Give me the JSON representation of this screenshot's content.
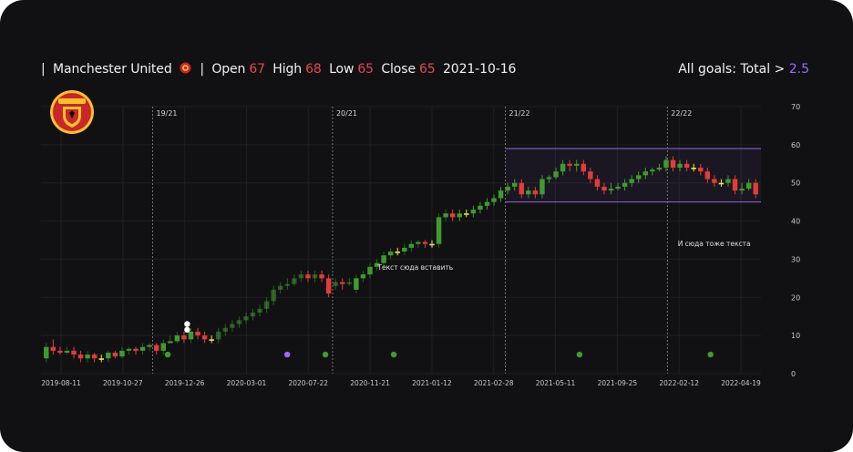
{
  "header": {
    "sep1": "|",
    "team": "Manchester United",
    "sep2": "|",
    "open_label": "Open",
    "open": "67",
    "high_label": "High",
    "high": "68",
    "low_label": "Low",
    "low": "65",
    "close_label": "Close",
    "close": "65",
    "date": "2021-10-16",
    "goals_label": "All goals: Total >",
    "goals_value": "2.5"
  },
  "logo": {
    "text": "MANCHESTER UNITED"
  },
  "colors": {
    "up": "#3f9b2f",
    "down": "#e23b3b",
    "doji": "#f2e64a",
    "band": "#8d6ad8",
    "bg": "#111113",
    "grid": "#1f1f23",
    "purple_value": "#9b6bff"
  },
  "chart_data": {
    "type": "candlestick",
    "ylim": [
      0,
      70
    ],
    "yticks": [
      0,
      10,
      20,
      30,
      40,
      50,
      60,
      70
    ],
    "xticks": [
      "2019-08-11",
      "2019-10-27",
      "2019-12-26",
      "2020-03-01",
      "2020-07-22",
      "2020-11-21",
      "2021-01-12",
      "2021-02-28",
      "2021-05-11",
      "2021-09-25",
      "2022-02-12",
      "2022-04-19"
    ],
    "seasons": [
      {
        "label": "19/21",
        "at": 0.155
      },
      {
        "label": "20/21",
        "at": 0.405
      },
      {
        "label": "21/22",
        "at": 0.645
      },
      {
        "label": "22/22",
        "at": 0.87
      }
    ],
    "band": {
      "top": 59,
      "bottom": 45,
      "from": 0.645,
      "to": 1.0
    },
    "annotations": [
      {
        "text": "Текст сюда вставить",
        "x": 0.52,
        "y": 27.2
      },
      {
        "text": "И сюда тоже текста",
        "x": 0.935,
        "y": 33.5
      }
    ],
    "candles": [
      {
        "o": 4,
        "c": 7,
        "h": 8,
        "l": 3
      },
      {
        "o": 7,
        "c": 6,
        "h": 9,
        "l": 5
      },
      {
        "o": 6,
        "c": 5.5,
        "h": 7,
        "l": 5
      },
      {
        "o": 5.5,
        "c": 6,
        "h": 7,
        "l": 5
      },
      {
        "o": 6,
        "c": 5,
        "h": 7,
        "l": 4
      },
      {
        "o": 5,
        "c": 4,
        "h": 6,
        "l": 3
      },
      {
        "o": 4,
        "c": 5,
        "h": 6,
        "l": 3
      },
      {
        "o": 5,
        "c": 4,
        "h": 5.5,
        "l": 3
      },
      {
        "o": 4,
        "c": 4,
        "h": 5,
        "l": 3
      },
      {
        "o": 4,
        "c": 5.5,
        "h": 6,
        "l": 3
      },
      {
        "o": 5.5,
        "c": 4.5,
        "h": 6,
        "l": 4
      },
      {
        "o": 4.5,
        "c": 6,
        "h": 7,
        "l": 4
      },
      {
        "o": 6,
        "c": 6.5,
        "h": 7,
        "l": 5
      },
      {
        "o": 6.5,
        "c": 6,
        "h": 7,
        "l": 5
      },
      {
        "o": 6,
        "c": 7,
        "h": 8,
        "l": 5
      },
      {
        "o": 7,
        "c": 7.5,
        "h": 8,
        "l": 6
      },
      {
        "o": 7.5,
        "c": 6,
        "h": 8,
        "l": 5
      },
      {
        "o": 6,
        "c": 8,
        "h": 9,
        "l": 5
      },
      {
        "o": 8,
        "c": 8.5,
        "h": 10,
        "l": 8
      },
      {
        "o": 8.5,
        "c": 10,
        "h": 11,
        "l": 8
      },
      {
        "o": 10,
        "c": 9,
        "h": 11,
        "l": 8
      },
      {
        "o": 9,
        "c": 11,
        "h": 12,
        "l": 8
      },
      {
        "o": 11,
        "c": 10,
        "h": 12,
        "l": 9
      },
      {
        "o": 10,
        "c": 9,
        "h": 11,
        "l": 8
      },
      {
        "o": 9,
        "c": 9,
        "h": 10,
        "l": 8
      },
      {
        "o": 9,
        "c": 11,
        "h": 12,
        "l": 8
      },
      {
        "o": 11,
        "c": 12,
        "h": 13,
        "l": 10
      },
      {
        "o": 12,
        "c": 13,
        "h": 14,
        "l": 11
      },
      {
        "o": 13,
        "c": 14,
        "h": 15,
        "l": 12
      },
      {
        "o": 14,
        "c": 15,
        "h": 16,
        "l": 13
      },
      {
        "o": 15,
        "c": 16,
        "h": 17,
        "l": 14
      },
      {
        "o": 16,
        "c": 17,
        "h": 18,
        "l": 15
      },
      {
        "o": 17,
        "c": 19,
        "h": 20,
        "l": 16
      },
      {
        "o": 19,
        "c": 22,
        "h": 23,
        "l": 18
      },
      {
        "o": 22,
        "c": 23,
        "h": 24,
        "l": 21
      },
      {
        "o": 23,
        "c": 23.5,
        "h": 25,
        "l": 22
      },
      {
        "o": 23.5,
        "c": 25,
        "h": 26,
        "l": 23
      },
      {
        "o": 25,
        "c": 26,
        "h": 27,
        "l": 24
      },
      {
        "o": 26,
        "c": 25,
        "h": 27,
        "l": 24
      },
      {
        "o": 25,
        "c": 26,
        "h": 27,
        "l": 24
      },
      {
        "o": 26,
        "c": 25,
        "h": 27,
        "l": 24
      },
      {
        "o": 25,
        "c": 21,
        "h": 26,
        "l": 20
      },
      {
        "o": 23,
        "c": 24,
        "h": 25,
        "l": 22
      },
      {
        "o": 24,
        "c": 23.5,
        "h": 25,
        "l": 22
      },
      {
        "o": 23.5,
        "c": 24,
        "h": 25,
        "l": 23
      },
      {
        "o": 22,
        "c": 25,
        "h": 26,
        "l": 21
      },
      {
        "o": 25,
        "c": 26,
        "h": 27,
        "l": 24
      },
      {
        "o": 26,
        "c": 28,
        "h": 29,
        "l": 25
      },
      {
        "o": 28,
        "c": 29,
        "h": 30,
        "l": 27
      },
      {
        "o": 29,
        "c": 31,
        "h": 32,
        "l": 28
      },
      {
        "o": 31,
        "c": 32,
        "h": 33,
        "l": 30
      },
      {
        "o": 32,
        "c": 32,
        "h": 33,
        "l": 31
      },
      {
        "o": 32,
        "c": 33,
        "h": 34,
        "l": 31
      },
      {
        "o": 33,
        "c": 34,
        "h": 35,
        "l": 32
      },
      {
        "o": 34,
        "c": 34.5,
        "h": 35,
        "l": 33
      },
      {
        "o": 34.5,
        "c": 34,
        "h": 35,
        "l": 33
      },
      {
        "o": 34,
        "c": 34,
        "h": 35,
        "l": 33
      },
      {
        "o": 34,
        "c": 41,
        "h": 42,
        "l": 33
      },
      {
        "o": 41,
        "c": 42,
        "h": 43,
        "l": 40
      },
      {
        "o": 42,
        "c": 41,
        "h": 43,
        "l": 40
      },
      {
        "o": 41,
        "c": 42,
        "h": 43,
        "l": 40
      },
      {
        "o": 42,
        "c": 42,
        "h": 43,
        "l": 41
      },
      {
        "o": 42,
        "c": 43,
        "h": 44,
        "l": 41
      },
      {
        "o": 43,
        "c": 44,
        "h": 45,
        "l": 42
      },
      {
        "o": 44,
        "c": 45,
        "h": 46,
        "l": 43
      },
      {
        "o": 45,
        "c": 46,
        "h": 47,
        "l": 44
      },
      {
        "o": 46,
        "c": 48,
        "h": 49,
        "l": 45
      },
      {
        "o": 48,
        "c": 49,
        "h": 50,
        "l": 47
      },
      {
        "o": 49,
        "c": 50,
        "h": 51,
        "l": 48
      },
      {
        "o": 50,
        "c": 47,
        "h": 51,
        "l": 46
      },
      {
        "o": 47,
        "c": 48,
        "h": 49,
        "l": 46
      },
      {
        "o": 48,
        "c": 47,
        "h": 49,
        "l": 46
      },
      {
        "o": 47,
        "c": 51,
        "h": 52,
        "l": 46
      },
      {
        "o": 51,
        "c": 51.5,
        "h": 52,
        "l": 50
      },
      {
        "o": 51.5,
        "c": 53,
        "h": 54,
        "l": 51
      },
      {
        "o": 53,
        "c": 55,
        "h": 56,
        "l": 52
      },
      {
        "o": 55,
        "c": 54.5,
        "h": 56,
        "l": 53
      },
      {
        "o": 54.5,
        "c": 55,
        "h": 56,
        "l": 53
      },
      {
        "o": 55,
        "c": 53,
        "h": 56,
        "l": 52
      },
      {
        "o": 53,
        "c": 51,
        "h": 54,
        "l": 50
      },
      {
        "o": 51,
        "c": 49,
        "h": 52,
        "l": 48
      },
      {
        "o": 49,
        "c": 48,
        "h": 50,
        "l": 47
      },
      {
        "o": 48,
        "c": 48.5,
        "h": 50,
        "l": 47
      },
      {
        "o": 48.5,
        "c": 49,
        "h": 50,
        "l": 48
      },
      {
        "o": 49,
        "c": 50,
        "h": 51,
        "l": 48
      },
      {
        "o": 50,
        "c": 51,
        "h": 52,
        "l": 49
      },
      {
        "o": 51,
        "c": 52,
        "h": 53,
        "l": 50
      },
      {
        "o": 52,
        "c": 53,
        "h": 54,
        "l": 51
      },
      {
        "o": 53,
        "c": 53.5,
        "h": 54,
        "l": 52
      },
      {
        "o": 53.5,
        "c": 54,
        "h": 55,
        "l": 53
      },
      {
        "o": 54,
        "c": 56,
        "h": 57,
        "l": 53
      },
      {
        "o": 56,
        "c": 54,
        "h": 57,
        "l": 53
      },
      {
        "o": 54,
        "c": 55,
        "h": 56,
        "l": 53
      },
      {
        "o": 55,
        "c": 54,
        "h": 56,
        "l": 53
      },
      {
        "o": 54,
        "c": 54,
        "h": 55,
        "l": 53
      },
      {
        "o": 54,
        "c": 53,
        "h": 55,
        "l": 52
      },
      {
        "o": 53,
        "c": 51,
        "h": 54,
        "l": 50
      },
      {
        "o": 51,
        "c": 50,
        "h": 52,
        "l": 49
      },
      {
        "o": 50,
        "c": 50,
        "h": 51,
        "l": 49
      },
      {
        "o": 50,
        "c": 51,
        "h": 52,
        "l": 49
      },
      {
        "o": 51,
        "c": 48,
        "h": 52,
        "l": 47
      },
      {
        "o": 48,
        "c": 48.5,
        "h": 50,
        "l": 47
      },
      {
        "o": 48.5,
        "c": 50,
        "h": 51,
        "l": 48
      },
      {
        "o": 50,
        "c": 47,
        "h": 51,
        "l": 46
      }
    ],
    "markers": [
      {
        "x": 0.176,
        "y": 5,
        "color": "#3f9b2f"
      },
      {
        "x": 0.203,
        "y": 13,
        "color": "#ffffff"
      },
      {
        "x": 0.203,
        "y": 11.5,
        "color": "#ffffff"
      },
      {
        "x": 0.342,
        "y": 5,
        "color": "#9b6bff"
      },
      {
        "x": 0.395,
        "y": 5,
        "color": "#3f9b2f"
      },
      {
        "x": 0.49,
        "y": 5,
        "color": "#3f9b2f"
      },
      {
        "x": 0.748,
        "y": 5,
        "color": "#3f9b2f"
      },
      {
        "x": 0.93,
        "y": 5,
        "color": "#3f9b2f"
      }
    ]
  }
}
